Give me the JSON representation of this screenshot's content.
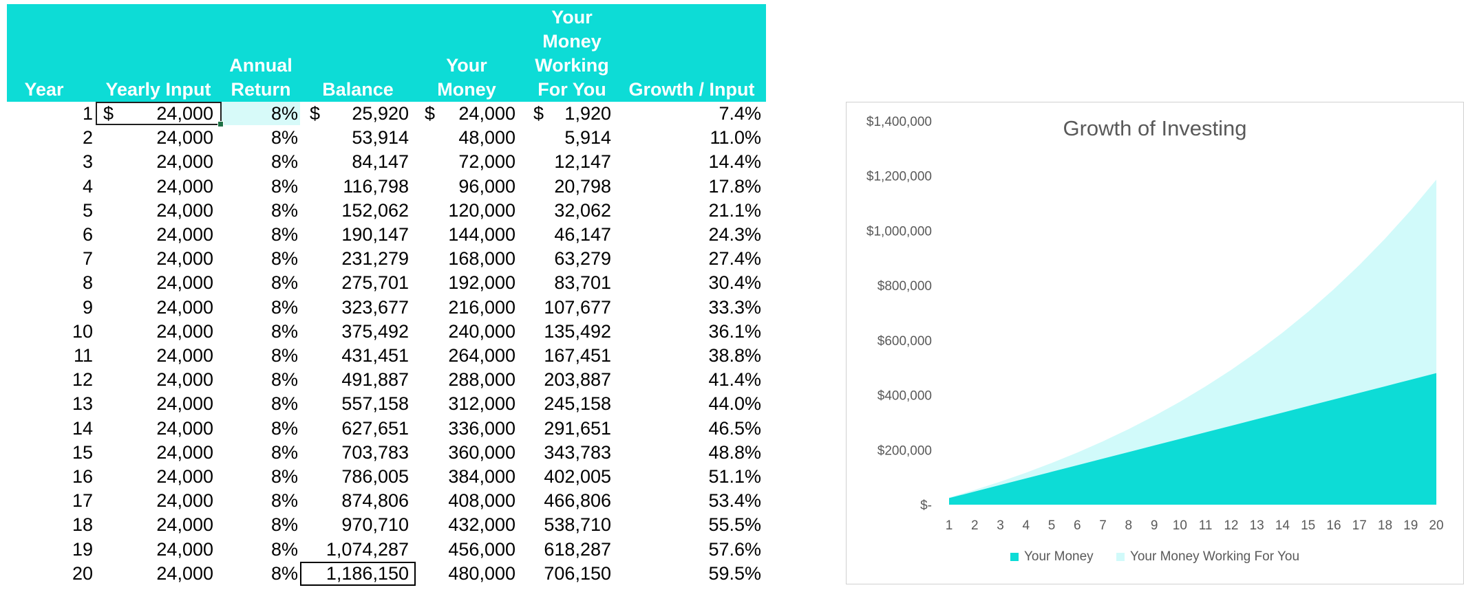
{
  "table": {
    "headers": [
      {
        "key": "year",
        "label": "Year"
      },
      {
        "key": "yearly_input",
        "label": "Yearly Input"
      },
      {
        "key": "annual_return",
        "label": "Annual\nReturn"
      },
      {
        "key": "balance",
        "label": "Balance"
      },
      {
        "key": "your_money",
        "label": "Your\nMoney"
      },
      {
        "key": "working",
        "label": "Your\nMoney\nWorking\nFor You"
      },
      {
        "key": "growth_input",
        "label": "Growth / Input"
      }
    ],
    "currency_symbol": "$",
    "rows": [
      {
        "year": "1",
        "input": "24,000",
        "ret": "8%",
        "balance": "25,920",
        "money": "24,000",
        "working": "1,920",
        "growth": "7.4%"
      },
      {
        "year": "2",
        "input": "24,000",
        "ret": "8%",
        "balance": "53,914",
        "money": "48,000",
        "working": "5,914",
        "growth": "11.0%"
      },
      {
        "year": "3",
        "input": "24,000",
        "ret": "8%",
        "balance": "84,147",
        "money": "72,000",
        "working": "12,147",
        "growth": "14.4%"
      },
      {
        "year": "4",
        "input": "24,000",
        "ret": "8%",
        "balance": "116,798",
        "money": "96,000",
        "working": "20,798",
        "growth": "17.8%"
      },
      {
        "year": "5",
        "input": "24,000",
        "ret": "8%",
        "balance": "152,062",
        "money": "120,000",
        "working": "32,062",
        "growth": "21.1%"
      },
      {
        "year": "6",
        "input": "24,000",
        "ret": "8%",
        "balance": "190,147",
        "money": "144,000",
        "working": "46,147",
        "growth": "24.3%"
      },
      {
        "year": "7",
        "input": "24,000",
        "ret": "8%",
        "balance": "231,279",
        "money": "168,000",
        "working": "63,279",
        "growth": "27.4%"
      },
      {
        "year": "8",
        "input": "24,000",
        "ret": "8%",
        "balance": "275,701",
        "money": "192,000",
        "working": "83,701",
        "growth": "30.4%"
      },
      {
        "year": "9",
        "input": "24,000",
        "ret": "8%",
        "balance": "323,677",
        "money": "216,000",
        "working": "107,677",
        "growth": "33.3%"
      },
      {
        "year": "10",
        "input": "24,000",
        "ret": "8%",
        "balance": "375,492",
        "money": "240,000",
        "working": "135,492",
        "growth": "36.1%"
      },
      {
        "year": "11",
        "input": "24,000",
        "ret": "8%",
        "balance": "431,451",
        "money": "264,000",
        "working": "167,451",
        "growth": "38.8%"
      },
      {
        "year": "12",
        "input": "24,000",
        "ret": "8%",
        "balance": "491,887",
        "money": "288,000",
        "working": "203,887",
        "growth": "41.4%"
      },
      {
        "year": "13",
        "input": "24,000",
        "ret": "8%",
        "balance": "557,158",
        "money": "312,000",
        "working": "245,158",
        "growth": "44.0%"
      },
      {
        "year": "14",
        "input": "24,000",
        "ret": "8%",
        "balance": "627,651",
        "money": "336,000",
        "working": "291,651",
        "growth": "46.5%"
      },
      {
        "year": "15",
        "input": "24,000",
        "ret": "8%",
        "balance": "703,783",
        "money": "360,000",
        "working": "343,783",
        "growth": "48.8%"
      },
      {
        "year": "16",
        "input": "24,000",
        "ret": "8%",
        "balance": "786,005",
        "money": "384,000",
        "working": "402,005",
        "growth": "51.1%"
      },
      {
        "year": "17",
        "input": "24,000",
        "ret": "8%",
        "balance": "874,806",
        "money": "408,000",
        "working": "466,806",
        "growth": "53.4%"
      },
      {
        "year": "18",
        "input": "24,000",
        "ret": "8%",
        "balance": "970,710",
        "money": "432,000",
        "working": "538,710",
        "growth": "55.5%"
      },
      {
        "year": "19",
        "input": "24,000",
        "ret": "8%",
        "balance": "1,074,287",
        "money": "456,000",
        "working": "618,287",
        "growth": "57.6%"
      },
      {
        "year": "20",
        "input": "24,000",
        "ret": "8%",
        "balance": "1,186,150",
        "money": "480,000",
        "working": "706,150",
        "growth": "59.5%"
      }
    ]
  },
  "colors": {
    "header_bg": "#0ddcd6",
    "your_money": "#0ddcd6",
    "working": "#d1fafa",
    "axis_text": "#595959"
  },
  "chart_data": {
    "type": "area",
    "stacked": true,
    "title": "Growth of Investing",
    "x": [
      1,
      2,
      3,
      4,
      5,
      6,
      7,
      8,
      9,
      10,
      11,
      12,
      13,
      14,
      15,
      16,
      17,
      18,
      19,
      20
    ],
    "series": [
      {
        "name": "Your Money",
        "values": [
          24000,
          48000,
          72000,
          96000,
          120000,
          144000,
          168000,
          192000,
          216000,
          240000,
          264000,
          288000,
          312000,
          336000,
          360000,
          384000,
          408000,
          432000,
          456000,
          480000
        ]
      },
      {
        "name": "Your Money Working For You",
        "values": [
          1920,
          5914,
          12147,
          20798,
          32062,
          46147,
          63279,
          83701,
          107677,
          135492,
          167451,
          203887,
          245158,
          291651,
          343783,
          402005,
          466806,
          538710,
          618287,
          706150
        ]
      }
    ],
    "ylim": [
      0,
      1400000
    ],
    "y_ticks": [
      {
        "value": 0,
        "label": "$-"
      },
      {
        "value": 200000,
        "label": "$200,000"
      },
      {
        "value": 400000,
        "label": "$400,000"
      },
      {
        "value": 600000,
        "label": "$600,000"
      },
      {
        "value": 800000,
        "label": "$800,000"
      },
      {
        "value": 1000000,
        "label": "$1,000,000"
      },
      {
        "value": 1200000,
        "label": "$1,200,000"
      },
      {
        "value": 1400000,
        "label": "$1,400,000"
      }
    ],
    "grid": false,
    "legend_position": "bottom"
  }
}
